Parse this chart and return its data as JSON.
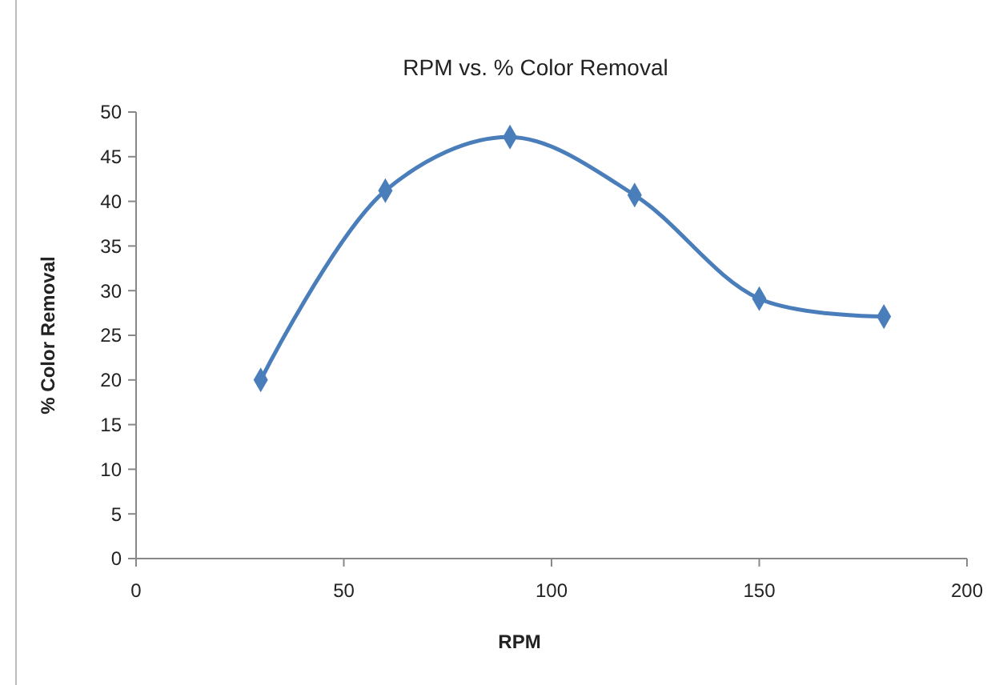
{
  "chart_data": {
    "type": "line",
    "title": "RPM vs. % Color Removal",
    "xlabel": "RPM",
    "ylabel": "% Color Removal",
    "x": [
      30,
      60,
      90,
      120,
      150,
      180
    ],
    "series": [
      {
        "color": "#4a7ebb",
        "values": [
          20,
          41.2,
          47.2,
          40.7,
          29.1,
          27.1
        ]
      }
    ],
    "xlim": [
      0,
      200
    ],
    "xticks": [
      0,
      50,
      100,
      150,
      200
    ],
    "ylim": [
      0,
      50
    ],
    "yticks": [
      0,
      5,
      10,
      15,
      20,
      25,
      30,
      35,
      40,
      45,
      50
    ],
    "grid": false,
    "marker": "diamond",
    "line_style": "solid"
  }
}
